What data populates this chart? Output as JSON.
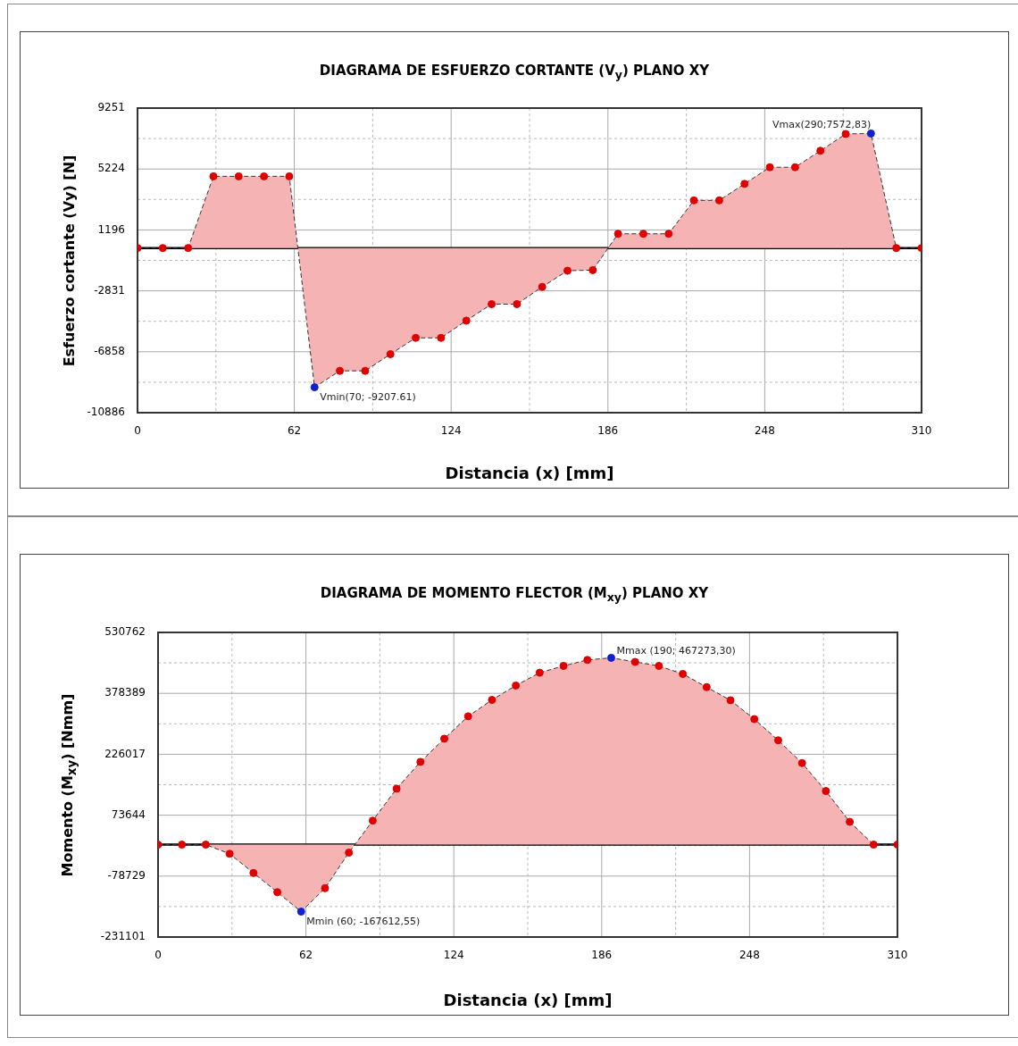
{
  "chart_data": [
    {
      "type": "area",
      "title": "DIAGRAMA DE ESFUERZO CORTANTE (V$_{y}$) PLANO XY",
      "xlabel": "Distancia (x) [mm]",
      "ylabel": "Esfuerzo cortante (Vy) [N]",
      "x": [
        0,
        10,
        20,
        30,
        40,
        50,
        60,
        70,
        80,
        90,
        100,
        110,
        120,
        130,
        140,
        150,
        160,
        170,
        180,
        190,
        200,
        210,
        220,
        230,
        240,
        250,
        260,
        270,
        280,
        290,
        300,
        310
      ],
      "series": [
        {
          "color": "#f5b3b3",
          "colors": [
            "#e00000",
            "#e00000",
            "#e00000",
            "#e00000",
            "#e00000",
            "#e00000",
            "#e00000",
            "#1020d0",
            "#e00000",
            "#e00000",
            "#e00000",
            "#e00000",
            "#e00000",
            "#e00000",
            "#e00000",
            "#e00000",
            "#e00000",
            "#e00000",
            "#e00000",
            "#e00000",
            "#e00000",
            "#e00000",
            "#e00000",
            "#e00000",
            "#e00000",
            "#e00000",
            "#e00000",
            "#e00000",
            "#e00000",
            "#1020d0",
            "#e00000",
            "#e00000"
          ],
          "values": [
            0,
            0,
            0,
            4740,
            4740,
            4740,
            4740,
            -9207.61,
            -8120,
            -8120,
            -7020,
            -5940,
            -5940,
            -4800,
            -3710,
            -3710,
            -2570,
            -1500,
            -1460,
            940,
            940,
            940,
            3150,
            3150,
            4240,
            5340,
            5340,
            6430,
            7540,
            7572.83,
            0,
            0
          ]
        }
      ],
      "xlim": [
        0,
        310
      ],
      "xticks": [
        0,
        {
          "value": 31,
          "label": null
        },
        62,
        {
          "value": 93,
          "label": null
        },
        124,
        {
          "value": 155,
          "label": null
        },
        186,
        {
          "value": 217,
          "label": null
        },
        248,
        {
          "value": 279,
          "label": null
        },
        310
      ],
      "ylim": [
        -10886,
        9251
      ],
      "yticks": [
        -10886,
        {
          "value": -8872,
          "label": null
        },
        -6858,
        {
          "value": -4844.5,
          "label": null
        },
        -2831,
        {
          "value": -817.5,
          "label": null
        },
        1196,
        {
          "value": 3210,
          "label": null
        },
        5224,
        {
          "value": 7237.5,
          "label": null
        },
        9251
      ],
      "annotations": [
        {
          "text": "Vmin(70; -9207.61)",
          "x": 70,
          "y": -9207.61
        },
        {
          "text": "Vmax(290;7572,83)",
          "x": 290,
          "y": 7572.83
        }
      ],
      "grid": true,
      "legend": false,
      "marker": "circle",
      "line_style": "dashed"
    },
    {
      "type": "area",
      "title": "DIAGRAMA DE MOMENTO FLECTOR (M$_{xy}$) PLANO XY",
      "xlabel": "Distancia (x) [mm]",
      "ylabel": "Momento (M$_{xy}$) [Nmm]",
      "x": [
        0,
        10,
        20,
        30,
        40,
        50,
        60,
        70,
        80,
        90,
        100,
        110,
        120,
        130,
        140,
        150,
        160,
        170,
        180,
        190,
        200,
        210,
        220,
        230,
        240,
        250,
        260,
        270,
        280,
        290,
        300,
        310
      ],
      "series": [
        {
          "color": "#f5b3b3",
          "colors": [
            "#e00000",
            "#e00000",
            "#e00000",
            "#e00000",
            "#e00000",
            "#e00000",
            "#1020d0",
            "#e00000",
            "#e00000",
            "#e00000",
            "#e00000",
            "#e00000",
            "#e00000",
            "#e00000",
            "#e00000",
            "#e00000",
            "#e00000",
            "#e00000",
            "#e00000",
            "#1020d0",
            "#e00000",
            "#e00000",
            "#e00000",
            "#e00000",
            "#e00000",
            "#e00000",
            "#e00000",
            "#e00000",
            "#e00000",
            "#e00000",
            "#e00000",
            "#e00000"
          ],
          "values": [
            0,
            0,
            0,
            -23000,
            -71000,
            -119000,
            -167612.55,
            -109000,
            -20000,
            60000,
            140000,
            207000,
            265000,
            321000,
            362000,
            398000,
            430000,
            447000,
            462000,
            467273.3,
            457000,
            447000,
            427000,
            394000,
            361000,
            314000,
            261000,
            204000,
            134000,
            57000,
            0,
            0
          ]
        }
      ],
      "xlim": [
        0,
        310
      ],
      "xticks": [
        0,
        {
          "value": 31,
          "label": null
        },
        62,
        {
          "value": 93,
          "label": null
        },
        124,
        {
          "value": 155,
          "label": null
        },
        186,
        {
          "value": 217,
          "label": null
        },
        248,
        {
          "value": 279,
          "label": null
        },
        310
      ],
      "ylim": [
        -231101,
        530762
      ],
      "yticks": [
        -231101,
        {
          "value": -154915,
          "label": null
        },
        -78729,
        {
          "value": -2542.5,
          "label": null
        },
        73644,
        {
          "value": 149830.5,
          "label": null
        },
        226017,
        {
          "value": 302203,
          "label": null
        },
        378389,
        {
          "value": 454575.5,
          "label": null
        },
        530762
      ],
      "annotations": [
        {
          "text": "Mmin (60; -167612,55)",
          "x": 60,
          "y": -167612.55
        },
        {
          "text": "Mmax (190; 467273,30)",
          "x": 190,
          "y": 467273.3
        }
      ],
      "grid": true,
      "legend": false,
      "marker": "circle",
      "line_style": "dashed"
    }
  ]
}
